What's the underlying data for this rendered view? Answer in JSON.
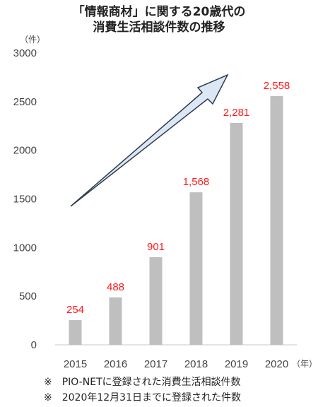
{
  "chart_data": {
    "type": "bar",
    "title_lines": [
      "「情報商材」に関する20歳代の",
      "消費生活相談件数の推移"
    ],
    "y_unit": "（件）",
    "x_unit": "（年）",
    "categories": [
      "2015",
      "2016",
      "2017",
      "2018",
      "2019",
      "2020"
    ],
    "values": [
      254,
      488,
      901,
      1568,
      2281,
      2558
    ],
    "value_labels": [
      "254",
      "488",
      "901",
      "1,568",
      "2,281",
      "2,558"
    ],
    "ylim": [
      0,
      3000
    ],
    "y_ticks": [
      "0",
      "500",
      "1000",
      "1500",
      "2000",
      "2500",
      "3000"
    ],
    "grid": false,
    "bar_color": "#bfbfbf",
    "label_color": "#ff1a1a",
    "arrow_color": "#dbe7f5",
    "arrow_outline": "#2f3b4c",
    "notes": [
      "※　PIO-NETに登録された消費生活相談件数",
      "※　2020年12月31日までに登録された件数"
    ]
  }
}
